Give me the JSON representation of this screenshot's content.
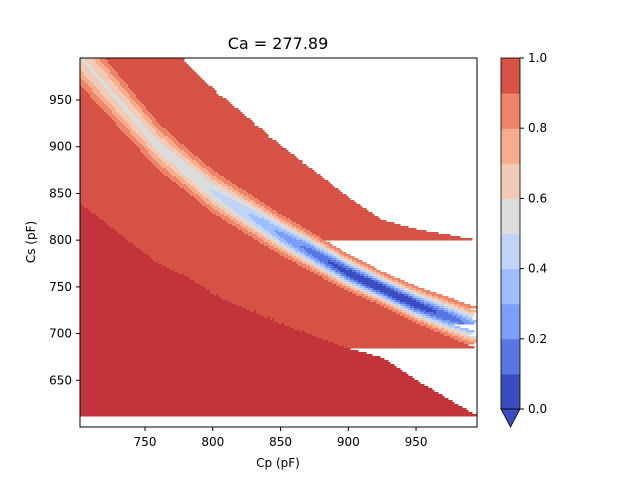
{
  "chart_data": {
    "type": "contourf",
    "title": "Ca = 277.89",
    "xlabel": "Cp (pF)",
    "ylabel": "Cs (pF)",
    "xlim": [
      702,
      995
    ],
    "ylim": [
      600,
      995
    ],
    "x_ticks": [
      "750",
      "800",
      "850",
      "900",
      "950"
    ],
    "x_tick_values": [
      750,
      800,
      850,
      900,
      950
    ],
    "y_ticks": [
      "650",
      "700",
      "750",
      "800",
      "850",
      "900",
      "950"
    ],
    "y_tick_values": [
      650,
      700,
      750,
      800,
      850,
      900,
      950
    ],
    "colorbar": {
      "range": [
        0.0,
        1.0
      ],
      "extend": "min",
      "ticks": [
        "0.0",
        "0.2",
        "0.4",
        "0.6",
        "0.8",
        "1.0"
      ],
      "tick_values": [
        0.0,
        0.2,
        0.4,
        0.6,
        0.8,
        1.0
      ],
      "levels": [
        0.0,
        0.1,
        0.2,
        0.3,
        0.4,
        0.5,
        0.6,
        0.7,
        0.8,
        0.9,
        1.0
      ],
      "colors": [
        "#3b4cc0",
        "#5977e3",
        "#7b9ff9",
        "#9ebeff",
        "#c0d4f5",
        "#dddcdc",
        "#f2cbb7",
        "#f7ac8e",
        "#ee8468",
        "#d65244",
        "#c5333a"
      ]
    },
    "ridge": {
      "description_curve_points": [
        [
          712,
          980
        ],
        [
          760,
          900
        ],
        [
          800,
          852
        ],
        [
          850,
          806
        ],
        [
          900,
          765
        ],
        [
          950,
          731
        ],
        [
          995,
          706
        ]
      ],
      "min_value_point": [
        925,
        742
      ]
    }
  }
}
